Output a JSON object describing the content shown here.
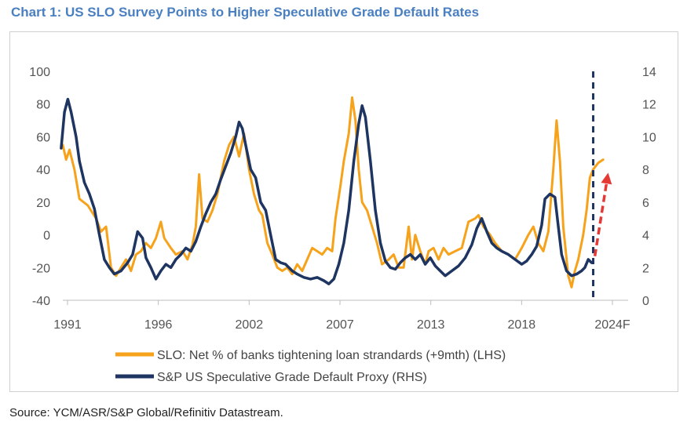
{
  "title": "Chart 1: US SLO Survey Points to Higher Speculative Grade Default Rates",
  "source": "Source: YCM/ASR/S&P Global/Refinitiv Datastream.",
  "colors": {
    "slo": "#f6a21b",
    "default": "#1e3461",
    "projection": "#e53935",
    "title": "#4a7fc1"
  },
  "chart_data": {
    "type": "line",
    "x_tick_labels": [
      "1991",
      "1996",
      "2002",
      "2007",
      "2013",
      "2018",
      "2024F"
    ],
    "x_range": [
      1991,
      2025
    ],
    "y_left_range": [
      -40,
      100
    ],
    "y_left_ticks": [
      100,
      80,
      60,
      40,
      20,
      0,
      -20,
      -40
    ],
    "y_right_range": [
      0,
      14
    ],
    "y_right_ticks": [
      14,
      12,
      10,
      8,
      6,
      4,
      2,
      0
    ],
    "grid": false,
    "legend_position": "bottom",
    "series": [
      {
        "name": "SLO: Net % of banks tightening loan strandards (+9mth) (LHS)",
        "axis": "left",
        "color": "#f6a21b",
        "points": [
          [
            1991.0,
            55
          ],
          [
            1991.2,
            46
          ],
          [
            1991.4,
            52
          ],
          [
            1991.7,
            40
          ],
          [
            1992.0,
            22
          ],
          [
            1992.5,
            18
          ],
          [
            1993.0,
            10
          ],
          [
            1993.3,
            2
          ],
          [
            1993.6,
            5
          ],
          [
            1993.9,
            -20
          ],
          [
            1994.2,
            -25
          ],
          [
            1994.5,
            -20
          ],
          [
            1994.8,
            -15
          ],
          [
            1995.1,
            -22
          ],
          [
            1995.4,
            -12
          ],
          [
            1995.7,
            -10
          ],
          [
            1996.0,
            -5
          ],
          [
            1996.3,
            -8
          ],
          [
            1996.6,
            -2
          ],
          [
            1996.9,
            8
          ],
          [
            1997.1,
            -2
          ],
          [
            1997.5,
            -8
          ],
          [
            1997.8,
            -12
          ],
          [
            1998.2,
            -10
          ],
          [
            1998.5,
            -15
          ],
          [
            1998.8,
            -6
          ],
          [
            1999.0,
            5
          ],
          [
            1999.2,
            37
          ],
          [
            1999.4,
            10
          ],
          [
            1999.7,
            8
          ],
          [
            2000.0,
            15
          ],
          [
            2000.3,
            25
          ],
          [
            2000.7,
            45
          ],
          [
            2001.0,
            55
          ],
          [
            2001.3,
            60
          ],
          [
            2001.6,
            48
          ],
          [
            2001.9,
            62
          ],
          [
            2002.2,
            40
          ],
          [
            2002.5,
            25
          ],
          [
            2002.8,
            15
          ],
          [
            2003.0,
            12
          ],
          [
            2003.3,
            -5
          ],
          [
            2003.6,
            -12
          ],
          [
            2003.9,
            -20
          ],
          [
            2004.2,
            -22
          ],
          [
            2004.5,
            -20
          ],
          [
            2004.8,
            -24
          ],
          [
            2005.1,
            -18
          ],
          [
            2005.4,
            -22
          ],
          [
            2005.7,
            -15
          ],
          [
            2006.0,
            -8
          ],
          [
            2006.3,
            -10
          ],
          [
            2006.6,
            -12
          ],
          [
            2006.9,
            -8
          ],
          [
            2007.2,
            -10
          ],
          [
            2007.4,
            10
          ],
          [
            2007.7,
            30
          ],
          [
            2007.9,
            45
          ],
          [
            2008.2,
            62
          ],
          [
            2008.4,
            84
          ],
          [
            2008.6,
            70
          ],
          [
            2008.8,
            40
          ],
          [
            2009.0,
            20
          ],
          [
            2009.3,
            15
          ],
          [
            2009.6,
            5
          ],
          [
            2009.9,
            -5
          ],
          [
            2010.2,
            -18
          ],
          [
            2010.6,
            -15
          ],
          [
            2010.9,
            -12
          ],
          [
            2011.2,
            -20
          ],
          [
            2011.5,
            -20
          ],
          [
            2011.8,
            5
          ],
          [
            2012.0,
            -15
          ],
          [
            2012.2,
            0
          ],
          [
            2012.5,
            -10
          ],
          [
            2012.8,
            -18
          ],
          [
            2013.0,
            -10
          ],
          [
            2013.3,
            -8
          ],
          [
            2013.6,
            -15
          ],
          [
            2013.9,
            -8
          ],
          [
            2014.2,
            -12
          ],
          [
            2014.6,
            -10
          ],
          [
            2015.0,
            -8
          ],
          [
            2015.4,
            8
          ],
          [
            2015.8,
            10
          ],
          [
            2016.0,
            12
          ],
          [
            2016.3,
            5
          ],
          [
            2016.7,
            0
          ],
          [
            2017.0,
            -5
          ],
          [
            2017.4,
            -10
          ],
          [
            2017.8,
            -12
          ],
          [
            2018.2,
            -15
          ],
          [
            2018.6,
            -8
          ],
          [
            2019.0,
            0
          ],
          [
            2019.3,
            5
          ],
          [
            2019.6,
            -5
          ],
          [
            2019.9,
            -10
          ],
          [
            2020.2,
            2
          ],
          [
            2020.5,
            40
          ],
          [
            2020.7,
            70
          ],
          [
            2020.9,
            45
          ],
          [
            2021.1,
            5
          ],
          [
            2021.4,
            -25
          ],
          [
            2021.6,
            -32
          ],
          [
            2021.8,
            -22
          ],
          [
            2022.0,
            -15
          ],
          [
            2022.3,
            0
          ],
          [
            2022.5,
            15
          ],
          [
            2022.7,
            35
          ],
          [
            2022.9,
            40
          ],
          [
            2023.2,
            44
          ],
          [
            2023.5,
            46
          ]
        ]
      },
      {
        "name": "S&P US Speculative Grade Default Proxy (RHS)",
        "axis": "right",
        "color": "#1e3461",
        "points": [
          [
            1990.9,
            9.3
          ],
          [
            1991.1,
            11.5
          ],
          [
            1991.3,
            12.3
          ],
          [
            1991.5,
            11.5
          ],
          [
            1991.8,
            10.0
          ],
          [
            1992.0,
            8.5
          ],
          [
            1992.3,
            7.2
          ],
          [
            1992.6,
            6.5
          ],
          [
            1992.9,
            5.6
          ],
          [
            1993.2,
            4.0
          ],
          [
            1993.5,
            2.5
          ],
          [
            1993.8,
            2.0
          ],
          [
            1994.1,
            1.6
          ],
          [
            1994.5,
            1.8
          ],
          [
            1994.9,
            2.3
          ],
          [
            1995.2,
            2.8
          ],
          [
            1995.5,
            4.2
          ],
          [
            1995.8,
            3.8
          ],
          [
            1996.0,
            2.6
          ],
          [
            1996.3,
            2.0
          ],
          [
            1996.6,
            1.3
          ],
          [
            1996.9,
            1.8
          ],
          [
            1997.2,
            2.2
          ],
          [
            1997.5,
            2.0
          ],
          [
            1997.8,
            2.5
          ],
          [
            1998.1,
            2.8
          ],
          [
            1998.4,
            3.2
          ],
          [
            1998.7,
            3.0
          ],
          [
            1999.0,
            3.6
          ],
          [
            1999.3,
            4.5
          ],
          [
            1999.6,
            5.3
          ],
          [
            1999.9,
            6.0
          ],
          [
            2000.2,
            6.5
          ],
          [
            2000.5,
            7.4
          ],
          [
            2000.8,
            8.2
          ],
          [
            2001.1,
            9.0
          ],
          [
            2001.4,
            10.0
          ],
          [
            2001.6,
            10.9
          ],
          [
            2001.8,
            10.5
          ],
          [
            2002.0,
            9.5
          ],
          [
            2002.3,
            8.0
          ],
          [
            2002.6,
            7.5
          ],
          [
            2002.9,
            6.0
          ],
          [
            2003.2,
            5.5
          ],
          [
            2003.5,
            4.0
          ],
          [
            2003.8,
            2.5
          ],
          [
            2004.1,
            2.3
          ],
          [
            2004.4,
            2.2
          ],
          [
            2004.8,
            1.8
          ],
          [
            2005.1,
            1.6
          ],
          [
            2005.5,
            1.4
          ],
          [
            2005.9,
            1.3
          ],
          [
            2006.3,
            1.4
          ],
          [
            2006.7,
            1.2
          ],
          [
            2007.0,
            1.0
          ],
          [
            2007.3,
            1.3
          ],
          [
            2007.6,
            2.2
          ],
          [
            2007.9,
            3.5
          ],
          [
            2008.2,
            5.5
          ],
          [
            2008.5,
            8.5
          ],
          [
            2008.8,
            10.8
          ],
          [
            2009.0,
            11.9
          ],
          [
            2009.2,
            11.2
          ],
          [
            2009.5,
            8.5
          ],
          [
            2009.8,
            5.5
          ],
          [
            2010.1,
            3.5
          ],
          [
            2010.4,
            2.4
          ],
          [
            2010.7,
            2.0
          ],
          [
            2011.0,
            1.9
          ],
          [
            2011.3,
            2.3
          ],
          [
            2011.6,
            2.6
          ],
          [
            2011.9,
            2.8
          ],
          [
            2012.2,
            2.5
          ],
          [
            2012.5,
            2.8
          ],
          [
            2012.8,
            2.2
          ],
          [
            2013.1,
            2.6
          ],
          [
            2013.4,
            2.1
          ],
          [
            2013.7,
            1.8
          ],
          [
            2014.0,
            1.5
          ],
          [
            2014.4,
            1.8
          ],
          [
            2014.8,
            2.1
          ],
          [
            2015.2,
            2.6
          ],
          [
            2015.6,
            3.4
          ],
          [
            2015.9,
            4.4
          ],
          [
            2016.2,
            5.0
          ],
          [
            2016.5,
            4.2
          ],
          [
            2016.8,
            3.5
          ],
          [
            2017.1,
            3.2
          ],
          [
            2017.4,
            3.0
          ],
          [
            2017.8,
            2.8
          ],
          [
            2018.2,
            2.5
          ],
          [
            2018.6,
            2.2
          ],
          [
            2018.9,
            2.4
          ],
          [
            2019.2,
            2.8
          ],
          [
            2019.5,
            3.3
          ],
          [
            2019.8,
            4.6
          ],
          [
            2020.0,
            6.2
          ],
          [
            2020.3,
            6.5
          ],
          [
            2020.6,
            6.3
          ],
          [
            2020.8,
            4.5
          ],
          [
            2021.0,
            2.8
          ],
          [
            2021.3,
            1.8
          ],
          [
            2021.6,
            1.5
          ],
          [
            2021.9,
            1.6
          ],
          [
            2022.2,
            1.8
          ],
          [
            2022.4,
            2.0
          ],
          [
            2022.6,
            2.5
          ],
          [
            2022.8,
            2.3
          ]
        ]
      }
    ],
    "annotations": [
      {
        "type": "forecast-divider",
        "style": "dashed vertical line",
        "x": 2022.9
      },
      {
        "type": "projection-arrow",
        "style": "dashed red arrow",
        "from": [
          2023.0,
          2.7
        ],
        "to": [
          2023.8,
          7.8
        ]
      }
    ]
  }
}
